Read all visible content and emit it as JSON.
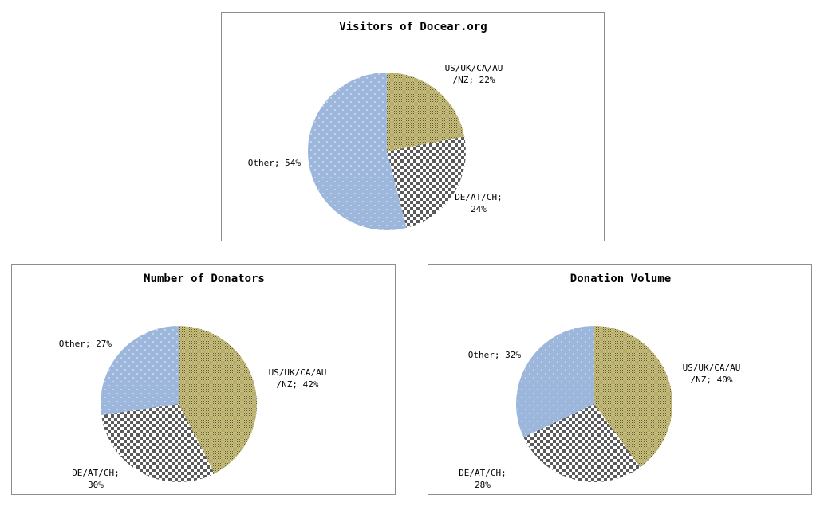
{
  "chart_data": [
    {
      "type": "pie",
      "title": "Visitors of Docear.org",
      "start_angle_deg": 0,
      "slices": [
        {
          "name": "US/UK/CA/AU /NZ",
          "value": 22,
          "label_lines": [
            "US/UK/CA/AU",
            "/NZ; 22%"
          ],
          "color": "#c9bf7e",
          "pattern": "dots-olive"
        },
        {
          "name": "DE/AT/CH",
          "value": 24,
          "label_lines": [
            "DE/AT/CH;",
            "24%"
          ],
          "color": "#8c8c8c",
          "pattern": "checker"
        },
        {
          "name": "Other",
          "value": 54,
          "label_lines": [
            "Other; 54%"
          ],
          "color": "#9db7dc",
          "pattern": "dots-blue"
        }
      ]
    },
    {
      "type": "pie",
      "title": "Number of Donators",
      "start_angle_deg": 0,
      "slices": [
        {
          "name": "US/UK/CA/AU /NZ",
          "value": 42,
          "label_lines": [
            "US/UK/CA/AU",
            "/NZ; 42%"
          ],
          "color": "#c9bf7e",
          "pattern": "dots-olive"
        },
        {
          "name": "DE/AT/CH",
          "value": 30,
          "label_lines": [
            "DE/AT/CH;",
            "30%"
          ],
          "color": "#8c8c8c",
          "pattern": "checker"
        },
        {
          "name": "Other",
          "value": 27,
          "label_lines": [
            "Other; 27%"
          ],
          "color": "#9db7dc",
          "pattern": "dots-blue"
        }
      ]
    },
    {
      "type": "pie",
      "title": "Donation Volume",
      "start_angle_deg": 0,
      "slices": [
        {
          "name": "US/UK/CA/AU /NZ",
          "value": 40,
          "label_lines": [
            "US/UK/CA/AU",
            "/NZ; 40%"
          ],
          "color": "#c9bf7e",
          "pattern": "dots-olive"
        },
        {
          "name": "DE/AT/CH",
          "value": 28,
          "label_lines": [
            "DE/AT/CH;",
            "28%"
          ],
          "color": "#8c8c8c",
          "pattern": "checker"
        },
        {
          "name": "Other",
          "value": 32,
          "label_lines": [
            "Other; 32%"
          ],
          "color": "#9db7dc",
          "pattern": "dots-blue"
        }
      ]
    }
  ]
}
